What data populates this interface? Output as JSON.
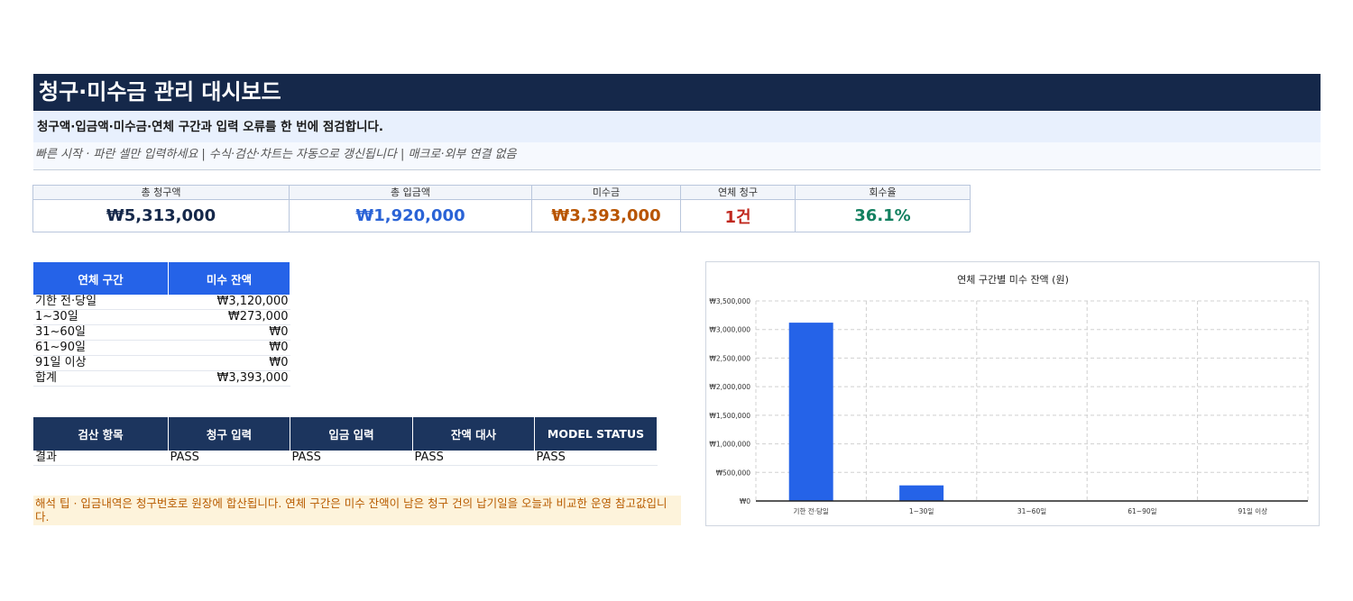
{
  "header": {
    "title": "청구·미수금 관리 대시보드",
    "subtitle": "청구액·입금액·미수금·연체 구간과 입력 오류를 한 번에 점검합니다.",
    "quickstart": "빠른 시작 · 파란 셀만 입력하세요 |  수식·검산·차트는 자동으로 갱신됩니다 |  매크로·외부 연결 없음"
  },
  "kpis": [
    {
      "label": "총 청구액",
      "value": "₩5,313,000",
      "color": "#15284a"
    },
    {
      "label": "총 입금액",
      "value": "₩1,920,000",
      "color": "#2a63d6"
    },
    {
      "label": "미수금",
      "value": "₩3,393,000",
      "color": "#b85400"
    },
    {
      "label": "연체 청구",
      "value": "1건",
      "color": "#c0281e"
    },
    {
      "label": "회수율",
      "value": "36.1%",
      "color": "#138060"
    }
  ],
  "aging_table": {
    "headers": [
      "연체 구간",
      "미수 잔액"
    ],
    "rows": [
      {
        "bucket": "기한 전·당일",
        "amount": "₩3,120,000"
      },
      {
        "bucket": "1~30일",
        "amount": "₩273,000"
      },
      {
        "bucket": "31~60일",
        "amount": "₩0"
      },
      {
        "bucket": "61~90일",
        "amount": "₩0"
      },
      {
        "bucket": "91일 이상",
        "amount": "₩0"
      },
      {
        "bucket": "합계",
        "amount": "₩3,393,000"
      }
    ]
  },
  "checks_table": {
    "headers": [
      "검산 항목",
      "청구 입력",
      "입금 입력",
      "잔액 대사",
      "MODEL STATUS"
    ],
    "row": [
      "결과",
      "PASS",
      "PASS",
      "PASS",
      "PASS"
    ]
  },
  "tip": "해석 팁 · 입금내역은 청구번호로 원장에 합산됩니다. 연체 구간은 미수 잔액이 남은 청구 건의 납기일을 오늘과 비교한 운영 참고값입니다.",
  "chart_data": {
    "type": "bar",
    "title": "연체 구간별 미수 잔액 (원)",
    "categories": [
      "기한 전·당일",
      "1~30일",
      "31~60일",
      "61~90일",
      "91일 이상"
    ],
    "values": [
      3120000,
      273000,
      0,
      0,
      0
    ],
    "ylim": [
      0,
      3500000
    ],
    "yticks": [
      0,
      500000,
      1000000,
      1500000,
      2000000,
      2500000,
      3000000,
      3500000
    ],
    "ytick_labels": [
      "₩0",
      "₩500,000",
      "₩1,000,000",
      "₩1,500,000",
      "₩2,000,000",
      "₩2,500,000",
      "₩3,000,000",
      "₩3,500,000"
    ],
    "bar_color": "#2563e8",
    "grid": true,
    "legend": "none"
  }
}
